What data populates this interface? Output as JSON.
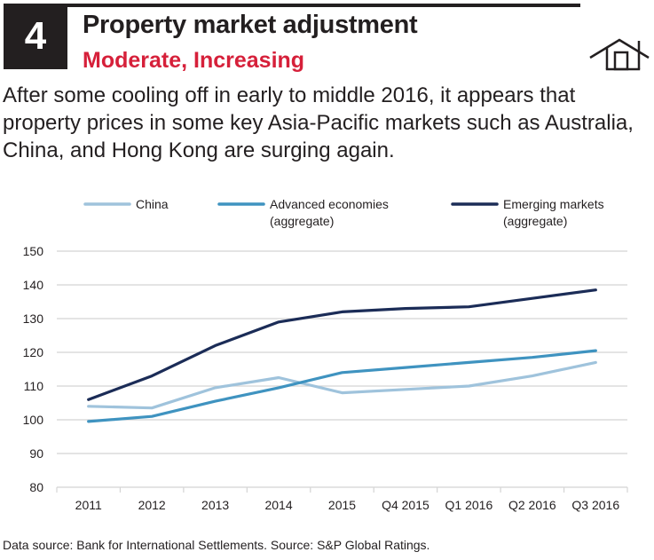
{
  "header": {
    "number": "4",
    "title": "Property market adjustment",
    "subtitle": "Moderate, Increasing",
    "icon": "house-icon"
  },
  "intro_text": "After some cooling off in early to middle 2016, it appears that property prices in some key Asia-Pacific markets such as Australia, China, and Hong Kong are surging again.",
  "colors": {
    "accent_red": "#d6203a",
    "china": "#9fc3dc",
    "advanced": "#3f93c0",
    "emerging": "#1b2c57",
    "grid": "#d4d4d4"
  },
  "chart_data": {
    "type": "line",
    "title": "",
    "xlabel": "",
    "ylabel": "",
    "categories": [
      "2011",
      "2012",
      "2013",
      "2014",
      "2015",
      "Q4 2015",
      "Q1 2016",
      "Q2 2016",
      "Q3 2016"
    ],
    "yticks": [
      "80",
      "90",
      "100",
      "110",
      "120",
      "130",
      "140",
      "150"
    ],
    "ylim": [
      80,
      150
    ],
    "grid": true,
    "legend_position": "top",
    "series": [
      {
        "name": "China",
        "label_lines": [
          "China"
        ],
        "color": "#9fc3dc",
        "values": [
          104,
          103.5,
          109.5,
          112.5,
          108,
          109,
          110,
          113,
          117
        ]
      },
      {
        "name": "Advanced economies (aggregate)",
        "label_lines": [
          "Advanced economies",
          "(aggregate)"
        ],
        "color": "#3f93c0",
        "values": [
          99.5,
          101,
          105.5,
          109.5,
          114,
          115.5,
          117,
          118.5,
          120.5
        ]
      },
      {
        "name": "Emerging markets (aggregate)",
        "label_lines": [
          "Emerging markets",
          "(aggregate)"
        ],
        "color": "#1b2c57",
        "values": [
          106,
          113,
          122,
          129,
          132,
          133,
          133.5,
          136,
          138.5
        ]
      }
    ]
  },
  "footer": "Data source: Bank for International Settlements. Source: S&P Global Ratings."
}
